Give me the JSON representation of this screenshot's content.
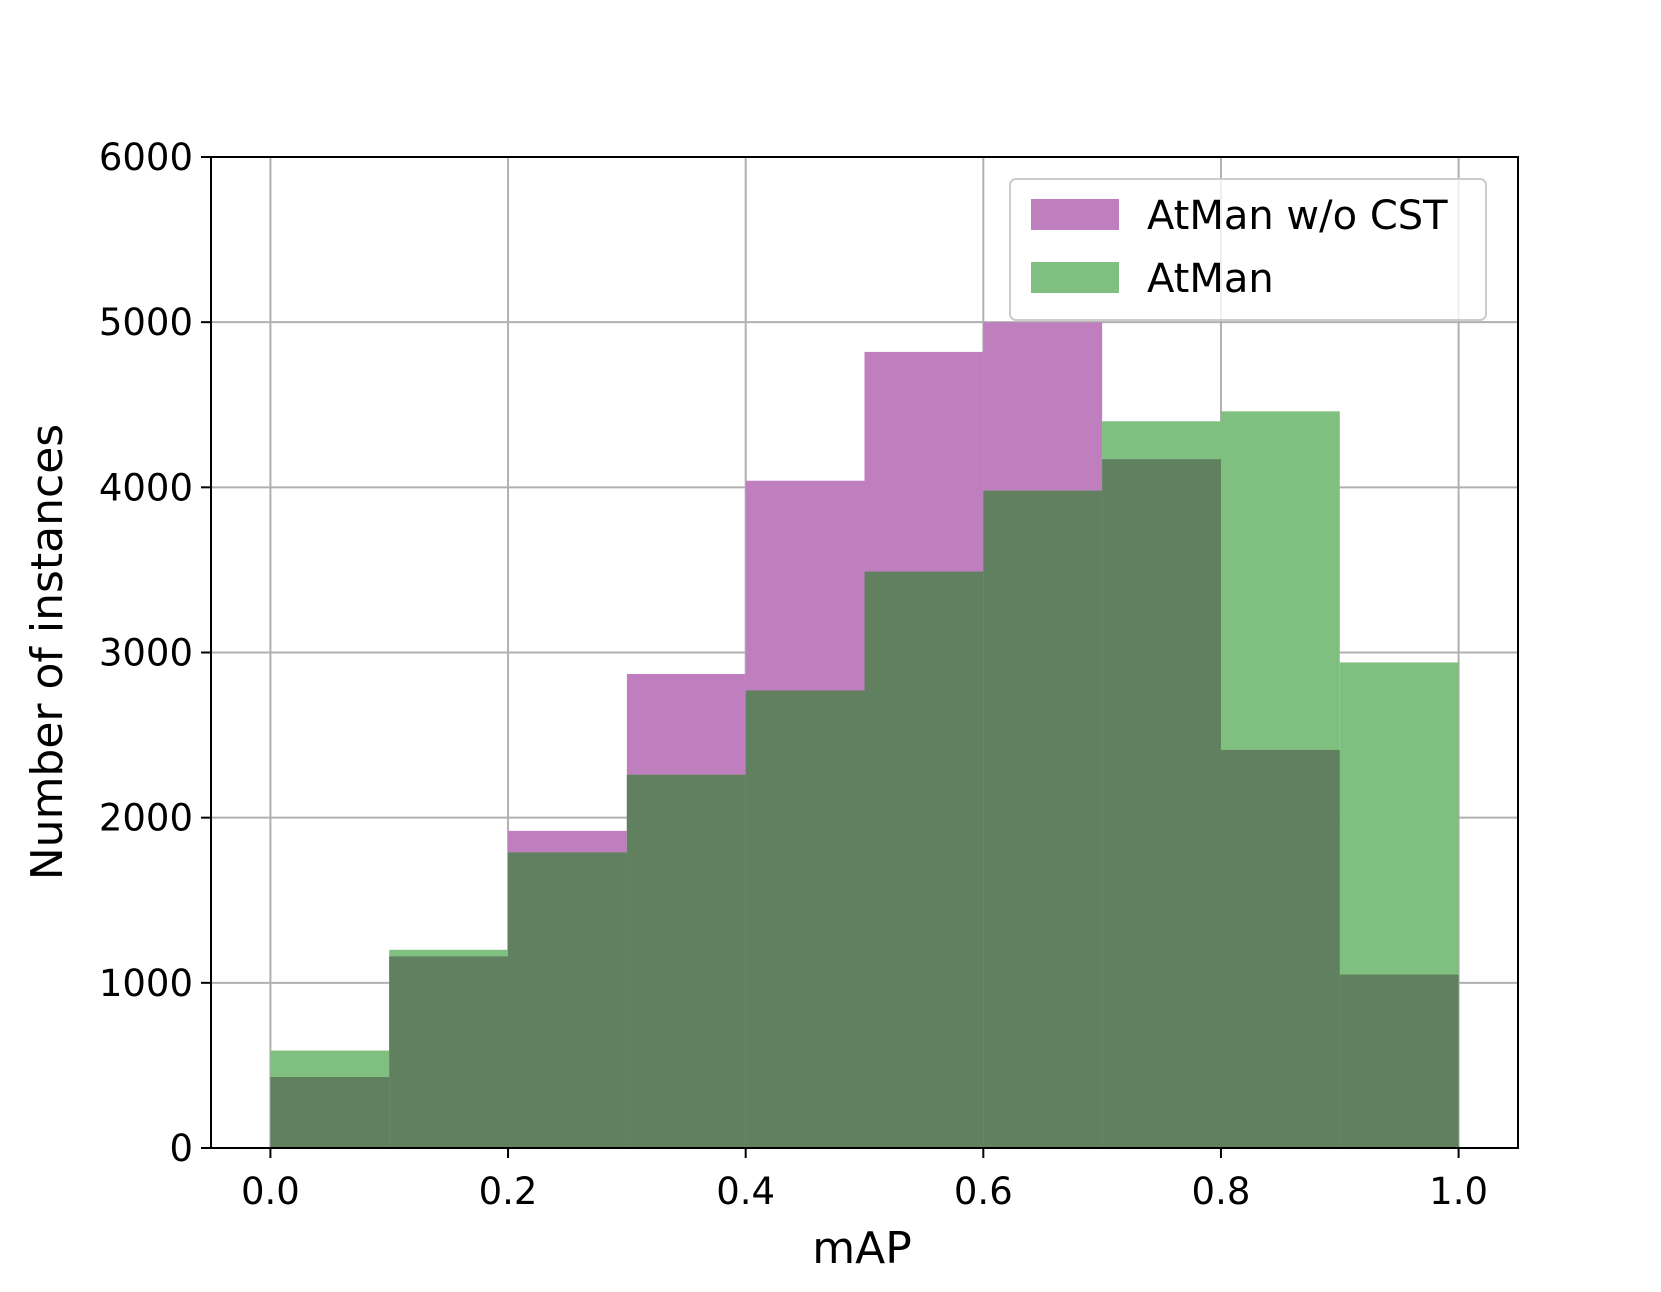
{
  "chart_data": {
    "type": "bar",
    "subtype": "overlapping-histogram",
    "title": "",
    "xlabel": "mAP",
    "ylabel": "Number of instances",
    "xlim": [
      -0.05,
      1.05
    ],
    "ylim": [
      0,
      6000
    ],
    "xticks": [
      0.0,
      0.2,
      0.4,
      0.6,
      0.8,
      1.0
    ],
    "xtick_labels": [
      "0.0",
      "0.2",
      "0.4",
      "0.6",
      "0.8",
      "1.0"
    ],
    "yticks": [
      0,
      1000,
      2000,
      3000,
      4000,
      5000,
      6000
    ],
    "ytick_labels": [
      "0",
      "1000",
      "2000",
      "3000",
      "4000",
      "5000",
      "6000"
    ],
    "grid": true,
    "legend_position": "top-right",
    "bin_edges": [
      0.0,
      0.1,
      0.2,
      0.3,
      0.4,
      0.5,
      0.6,
      0.7,
      0.8,
      0.9,
      1.0
    ],
    "series": [
      {
        "name": "AtMan w/o CST",
        "color": "#bf7fbf",
        "values": [
          430,
          1160,
          1920,
          2870,
          4040,
          4820,
          5000,
          4170,
          2410,
          1050
        ]
      },
      {
        "name": "AtMan",
        "color": "#7fbf7f",
        "values": [
          590,
          1200,
          1790,
          2260,
          2770,
          3490,
          3980,
          4400,
          4460,
          2940
        ]
      }
    ],
    "overlap_color": "#608060"
  }
}
